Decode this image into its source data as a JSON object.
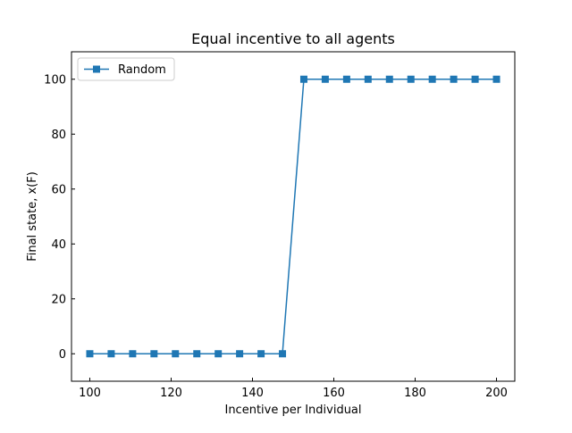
{
  "chart_data": {
    "type": "line",
    "title": "Equal incentive to all agents",
    "xlabel": "Incentive per Individual",
    "ylabel": "Final state, x(F)",
    "xlim": [
      95.5,
      204.5
    ],
    "ylim": [
      -10,
      110
    ],
    "xticks": [
      100,
      120,
      140,
      160,
      180,
      200
    ],
    "yticks": [
      0,
      20,
      40,
      60,
      80,
      100
    ],
    "grid": false,
    "legend_position": "upper left",
    "series": [
      {
        "name": "Random",
        "color": "#1f77b4",
        "marker": "square",
        "x": [
          100,
          105.26,
          110.53,
          115.79,
          121.05,
          126.32,
          131.58,
          136.84,
          142.11,
          147.37,
          152.63,
          157.89,
          163.16,
          168.42,
          173.68,
          178.95,
          184.21,
          189.47,
          194.74,
          200
        ],
        "y": [
          0,
          0,
          0,
          0,
          0,
          0,
          0,
          0,
          0,
          0,
          100,
          100,
          100,
          100,
          100,
          100,
          100,
          100,
          100,
          100
        ]
      }
    ]
  }
}
